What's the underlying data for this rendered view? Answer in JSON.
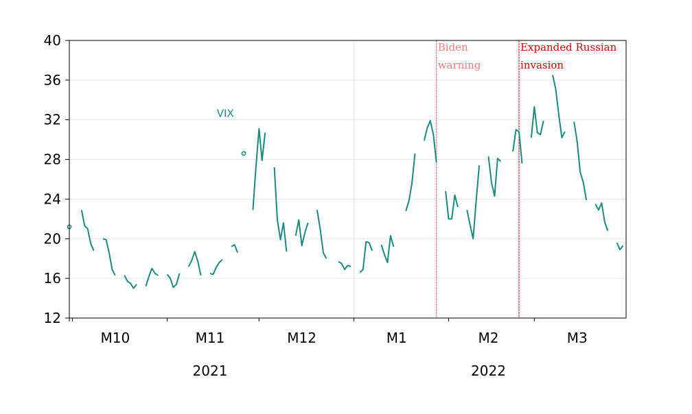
{
  "chart_data": {
    "type": "line",
    "title": "",
    "xlabel": "",
    "ylabel": "",
    "ylim": [
      12,
      40
    ],
    "y_ticks": [
      12,
      16,
      20,
      24,
      28,
      32,
      36,
      40
    ],
    "x_range": [
      "2021-09-30",
      "2022-03-31"
    ],
    "grid": true,
    "month_labels": [
      {
        "label": "M10",
        "date": "2021-10-15"
      },
      {
        "label": "M11",
        "date": "2021-11-15"
      },
      {
        "label": "M12",
        "date": "2021-12-15"
      },
      {
        "label": "M1",
        "date": "2022-01-15"
      },
      {
        "label": "M2",
        "date": "2022-02-14"
      },
      {
        "label": "M3",
        "date": "2022-03-15"
      }
    ],
    "month_ticks": [
      "2021-10-01",
      "2021-11-01",
      "2021-12-01",
      "2022-01-01",
      "2022-02-01",
      "2022-03-01"
    ],
    "year_labels": [
      {
        "label": "2021",
        "date": "2021-11-15"
      },
      {
        "label": "2022",
        "date": "2022-02-14"
      }
    ],
    "year_boundary": "2022-01-01",
    "series": [
      {
        "name": "VIX",
        "color": "#1a8a7f",
        "name_at": {
          "date": "2021-11-20",
          "y": 32.3
        },
        "segments": [
          [
            [
              "2021-09-30",
              21.2
            ]
          ],
          [
            [
              "2021-10-04",
              22.9
            ],
            [
              "2021-10-05",
              21.3
            ],
            [
              "2021-10-06",
              21.0
            ],
            [
              "2021-10-07",
              19.5
            ],
            [
              "2021-10-08",
              18.8
            ]
          ],
          [
            [
              "2021-10-11",
              20.0
            ],
            [
              "2021-10-12",
              19.9
            ],
            [
              "2021-10-13",
              18.6
            ],
            [
              "2021-10-14",
              16.9
            ],
            [
              "2021-10-15",
              16.3
            ]
          ],
          [
            [
              "2021-10-18",
              16.3
            ],
            [
              "2021-10-19",
              15.7
            ],
            [
              "2021-10-20",
              15.5
            ],
            [
              "2021-10-21",
              15.0
            ],
            [
              "2021-10-22",
              15.4
            ]
          ],
          [
            [
              "2021-10-25",
              15.2
            ],
            [
              "2021-10-26",
              16.2
            ],
            [
              "2021-10-27",
              17.0
            ],
            [
              "2021-10-28",
              16.5
            ],
            [
              "2021-10-29",
              16.3
            ]
          ],
          [
            [
              "2021-11-01",
              16.4
            ],
            [
              "2021-11-02",
              16.0
            ],
            [
              "2021-11-03",
              15.1
            ],
            [
              "2021-11-04",
              15.4
            ],
            [
              "2021-11-05",
              16.5
            ]
          ],
          [
            [
              "2021-11-08",
              17.2
            ],
            [
              "2021-11-09",
              17.8
            ],
            [
              "2021-11-10",
              18.7
            ],
            [
              "2021-11-11",
              17.7
            ],
            [
              "2021-11-12",
              16.3
            ]
          ],
          [
            [
              "2021-11-15",
              16.5
            ],
            [
              "2021-11-16",
              16.4
            ],
            [
              "2021-11-17",
              17.1
            ],
            [
              "2021-11-18",
              17.6
            ],
            [
              "2021-11-19",
              17.9
            ]
          ],
          [
            [
              "2021-11-22",
              19.2
            ],
            [
              "2021-11-23",
              19.4
            ],
            [
              "2021-11-24",
              18.6
            ]
          ],
          [
            [
              "2021-11-26",
              28.6
            ]
          ],
          [
            [
              "2021-11-29",
              22.9
            ],
            [
              "2021-11-30",
              27.2
            ],
            [
              "2021-12-01",
              31.1
            ],
            [
              "2021-12-02",
              27.9
            ],
            [
              "2021-12-03",
              30.7
            ]
          ],
          [
            [
              "2021-12-06",
              27.2
            ],
            [
              "2021-12-07",
              21.9
            ],
            [
              "2021-12-08",
              19.9
            ],
            [
              "2021-12-09",
              21.6
            ],
            [
              "2021-12-10",
              18.7
            ]
          ],
          [
            [
              "2021-12-13",
              20.3
            ],
            [
              "2021-12-14",
              21.9
            ],
            [
              "2021-12-15",
              19.3
            ],
            [
              "2021-12-16",
              20.6
            ],
            [
              "2021-12-17",
              21.6
            ]
          ],
          [
            [
              "2021-12-20",
              22.9
            ],
            [
              "2021-12-21",
              21.0
            ],
            [
              "2021-12-22",
              18.6
            ],
            [
              "2021-12-23",
              18.0
            ]
          ],
          [
            [
              "2021-12-27",
              17.7
            ],
            [
              "2021-12-28",
              17.5
            ],
            [
              "2021-12-29",
              16.9
            ],
            [
              "2021-12-30",
              17.3
            ],
            [
              "2021-12-31",
              17.2
            ]
          ],
          [
            [
              "2022-01-03",
              16.6
            ],
            [
              "2022-01-04",
              16.9
            ],
            [
              "2022-01-05",
              19.7
            ],
            [
              "2022-01-06",
              19.6
            ],
            [
              "2022-01-07",
              18.8
            ]
          ],
          [
            [
              "2022-01-10",
              19.4
            ],
            [
              "2022-01-11",
              18.4
            ],
            [
              "2022-01-12",
              17.6
            ],
            [
              "2022-01-13",
              20.3
            ],
            [
              "2022-01-14",
              19.2
            ]
          ],
          [
            [
              "2022-01-18",
              22.8
            ],
            [
              "2022-01-19",
              23.8
            ],
            [
              "2022-01-20",
              25.6
            ],
            [
              "2022-01-21",
              28.6
            ]
          ],
          [
            [
              "2022-01-24",
              29.9
            ],
            [
              "2022-01-25",
              31.2
            ],
            [
              "2022-01-26",
              31.9
            ],
            [
              "2022-01-27",
              30.5
            ],
            [
              "2022-01-28",
              27.7
            ]
          ],
          [
            [
              "2022-01-31",
              24.8
            ],
            [
              "2022-02-01",
              22.0
            ],
            [
              "2022-02-02",
              22.0
            ],
            [
              "2022-02-03",
              24.4
            ],
            [
              "2022-02-04",
              23.2
            ]
          ],
          [
            [
              "2022-02-07",
              22.9
            ],
            [
              "2022-02-08",
              21.4
            ],
            [
              "2022-02-09",
              20.0
            ],
            [
              "2022-02-10",
              23.9
            ],
            [
              "2022-02-11",
              27.4
            ]
          ],
          [
            [
              "2022-02-14",
              28.3
            ],
            [
              "2022-02-15",
              25.7
            ],
            [
              "2022-02-16",
              24.3
            ],
            [
              "2022-02-17",
              28.1
            ],
            [
              "2022-02-18",
              27.8
            ]
          ],
          [
            [
              "2022-02-22",
              28.8
            ],
            [
              "2022-02-23",
              31.0
            ],
            [
              "2022-02-24",
              30.8
            ],
            [
              "2022-02-25",
              27.6
            ]
          ],
          [
            [
              "2022-02-28",
              30.2
            ],
            [
              "2022-03-01",
              33.3
            ],
            [
              "2022-03-02",
              30.7
            ],
            [
              "2022-03-03",
              30.5
            ],
            [
              "2022-03-04",
              31.9
            ]
          ],
          [
            [
              "2022-03-07",
              36.5
            ],
            [
              "2022-03-08",
              35.1
            ],
            [
              "2022-03-09",
              32.5
            ],
            [
              "2022-03-10",
              30.2
            ],
            [
              "2022-03-11",
              30.8
            ]
          ],
          [
            [
              "2022-03-14",
              31.8
            ],
            [
              "2022-03-15",
              29.8
            ],
            [
              "2022-03-16",
              26.7
            ],
            [
              "2022-03-17",
              25.7
            ],
            [
              "2022-03-18",
              23.9
            ]
          ],
          [
            [
              "2022-03-21",
              23.5
            ],
            [
              "2022-03-22",
              22.9
            ],
            [
              "2022-03-23",
              23.6
            ],
            [
              "2022-03-24",
              21.7
            ],
            [
              "2022-03-25",
              20.8
            ]
          ],
          [
            [
              "2022-03-28",
              19.6
            ],
            [
              "2022-03-29",
              18.9
            ],
            [
              "2022-03-30",
              19.3
            ]
          ]
        ]
      }
    ],
    "annotations": [
      {
        "date": "2022-01-28",
        "lines": [
          "Biden",
          "warning"
        ],
        "color": "#f08080",
        "line_color": "#e06070"
      },
      {
        "date": "2022-02-24",
        "lines": [
          "Expanded Russian",
          "invasion"
        ],
        "color": "#dd0000",
        "line_color": "#cc0000"
      }
    ]
  }
}
